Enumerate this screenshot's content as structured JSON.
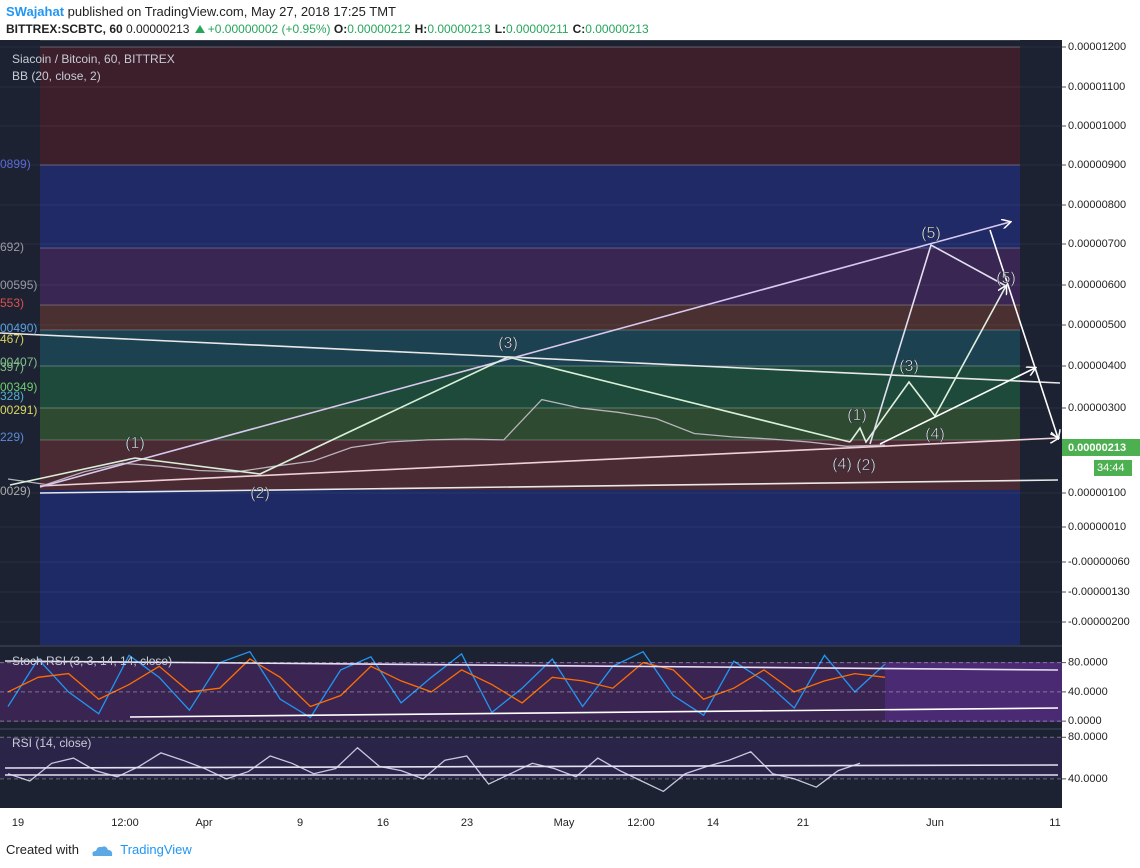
{
  "header": {
    "publisher": "SWajahat",
    "published": "published on TradingView.com, May 27, 2018 17:25 TMT",
    "symbol": "BITTREX:SCBTC, 60",
    "last": "0.00000213",
    "change": "+0.00000002 (+0.95%)",
    "ohlc": [
      {
        "key": "O:",
        "value": "0.00000212"
      },
      {
        "key": "H:",
        "value": "0.00000213"
      },
      {
        "key": "L:",
        "value": "0.00000211"
      },
      {
        "key": "C:",
        "value": "0.00000213"
      }
    ]
  },
  "chart_data": [
    {
      "type": "line",
      "title": "Siacoin / Bitcoin, 60, BITTREX",
      "subtitle": "BB (20, close, 2)",
      "color": "#b9b3bd",
      "values": [
        1.33e-06,
        1.2e-06,
        1.5e-06,
        1.7e-06,
        1.63e-06,
        1.53e-06,
        1.5e-06,
        1.63e-06,
        1.75e-06,
        2.07e-06,
        2.2e-06,
        2.25e-06,
        2.27e-06,
        2.25e-06,
        3.2e-06,
        3e-06,
        2.9e-06,
        2.75e-06,
        2.4e-06,
        2.32e-06,
        2.27e-06,
        2.2e-06,
        2.1e-06,
        2.13e-06
      ],
      "ylim": [
        -2.4e-06,
        1.22e-05
      ],
      "yticks": [
        {
          "value": 1.2e-05,
          "label": "0.00001200"
        },
        {
          "value": 1.1e-05,
          "label": "0.00001100"
        },
        {
          "value": 1e-05,
          "label": "0.00001000"
        },
        {
          "value": 9e-06,
          "label": "0.00000900"
        },
        {
          "value": 8e-06,
          "label": "0.00000800"
        },
        {
          "value": 7e-06,
          "label": "0.00000700"
        },
        {
          "value": 6e-06,
          "label": "0.00000600"
        },
        {
          "value": 5e-06,
          "label": "0.00000500"
        },
        {
          "value": 4e-06,
          "label": "0.00000400"
        },
        {
          "value": 3e-06,
          "label": "0.00000300"
        },
        {
          "value": 1e-06,
          "label": "0.00000100"
        },
        {
          "value": 1e-07,
          "label": "0.00000010"
        },
        {
          "value": -6e-07,
          "label": "-0.00000060"
        },
        {
          "value": -1.3e-06,
          "label": "-0.00000130"
        },
        {
          "value": -2e-06,
          "label": "-0.00000200"
        }
      ],
      "last_label": "0.00000213",
      "countdown": "34:44",
      "fib_labels": [
        "0899)",
        "692)",
        "00595)",
        "553)",
        "00490)",
        "467)",
        "00407)",
        "397)",
        "00349)",
        "328)",
        "00291)",
        "229)",
        "0029)"
      ],
      "annotations": [
        "(1)",
        "(2)",
        "(3)",
        "(1)",
        "(4)",
        "(2)",
        "(3)",
        "(4)",
        "(5)",
        "(5)"
      ]
    },
    {
      "type": "line",
      "title": "Stoch RSI (3, 3, 14, 14, close)",
      "series": [
        {
          "color": "#2196f3",
          "values": [
            20,
            85,
            40,
            10,
            90,
            60,
            15,
            80,
            95,
            30,
            5,
            70,
            88,
            25,
            60,
            92,
            12,
            45,
            85,
            20,
            75,
            95,
            35,
            8,
            82,
            55,
            18,
            90,
            40,
            78
          ]
        },
        {
          "color": "#ff6d00",
          "values": [
            40,
            60,
            65,
            30,
            50,
            75,
            40,
            45,
            85,
            60,
            20,
            35,
            75,
            55,
            40,
            70,
            50,
            25,
            60,
            55,
            45,
            80,
            70,
            30,
            45,
            70,
            40,
            55,
            65,
            60
          ]
        }
      ],
      "ylim": [
        -8,
        100
      ],
      "yticks": [
        {
          "value": 80,
          "label": "80.0000"
        },
        {
          "value": 40,
          "label": "40.0000"
        },
        {
          "value": 0,
          "label": "0.0000"
        }
      ]
    },
    {
      "type": "line",
      "title": "RSI (14, close)",
      "color": "#c9c6e0",
      "values": [
        45,
        38,
        55,
        60,
        48,
        42,
        52,
        65,
        58,
        50,
        40,
        47,
        62,
        55,
        45,
        50,
        70,
        52,
        48,
        40,
        58,
        62,
        35,
        45,
        55,
        50,
        42,
        60,
        48,
        38,
        28,
        45,
        52,
        58,
        66,
        45,
        40,
        32,
        48,
        55
      ],
      "ylim": [
        12,
        87
      ],
      "yticks": [
        {
          "value": 80,
          "label": "80.0000"
        },
        {
          "value": 40,
          "label": "40.0000"
        }
      ]
    }
  ],
  "time_axis": {
    "labels": [
      "19",
      "12:00",
      "Apr",
      "9",
      "16",
      "23",
      "May",
      "12:00",
      "14",
      "21",
      "Jun",
      "11"
    ]
  },
  "footer": {
    "created": "Created with",
    "brand": "TradingView"
  }
}
